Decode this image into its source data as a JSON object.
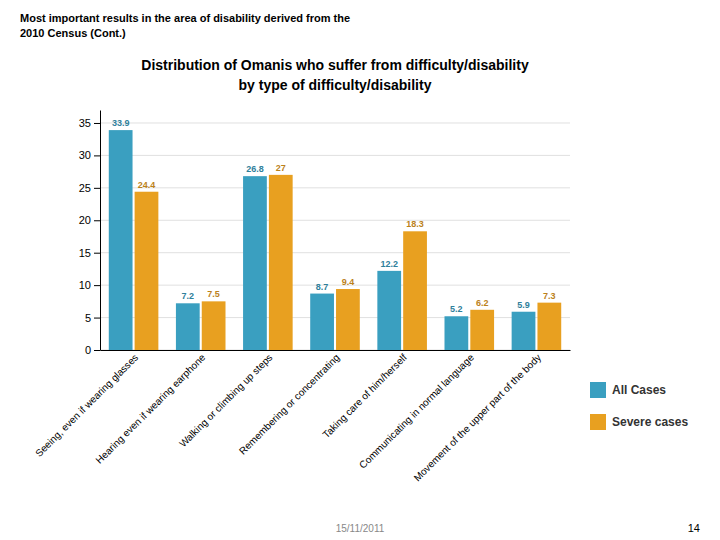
{
  "chart_data": {
    "type": "bar",
    "title": "Distribution of Omanis who suffer from difficulty/disability",
    "subtitle": "by type of difficulty/disability",
    "annotations": [
      "Most important results in the area of disability derived from the\n2010 Census (Cont.)",
      "15/11/2011",
      "14"
    ],
    "categories": [
      "Seeing, even if wearing glasses",
      "Hearing even if wearing earphone",
      "Walking or climbing up steps",
      "Remembering or concentrating",
      "Taking care of him/herself",
      "Communicating in normal language",
      "Movement of the upper part of the body"
    ],
    "series": [
      {
        "name": "All Cases",
        "color": "#3a9fc0",
        "values": [
          33.9,
          7.2,
          26.8,
          8.7,
          12.2,
          5.2,
          5.9
        ]
      },
      {
        "name": "Severe cases",
        "color": "#e8a020",
        "values": [
          24.4,
          7.5,
          27.0,
          9.4,
          18.3,
          6.2,
          7.3
        ]
      }
    ],
    "ylim": [
      0,
      37
    ],
    "yticks": [
      0,
      5,
      10,
      15,
      20,
      25,
      30,
      35
    ],
    "grid": true,
    "data_labels": true,
    "legend": "bottom-right"
  }
}
